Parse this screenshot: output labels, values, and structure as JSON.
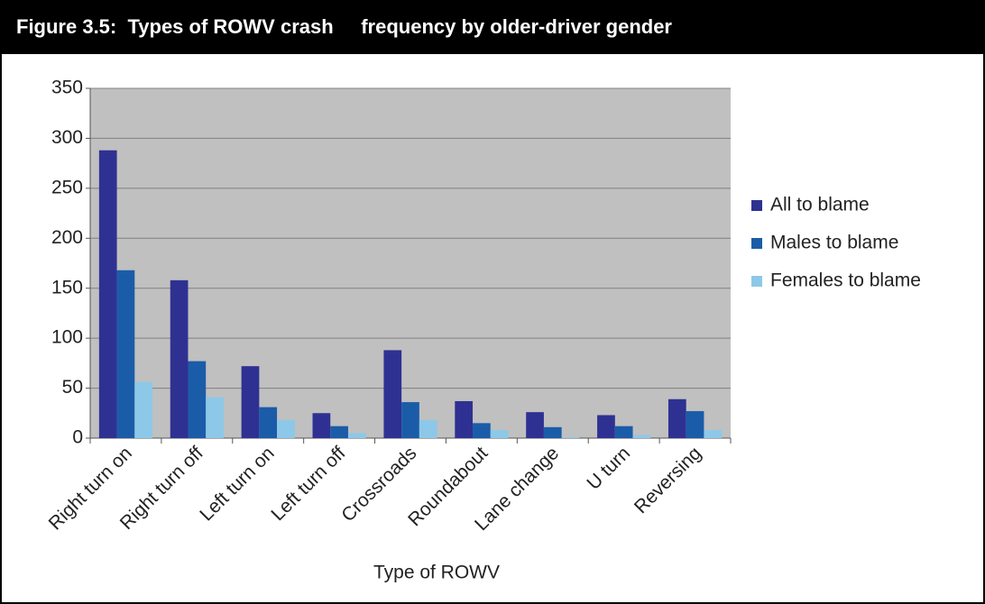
{
  "chart_data": {
    "type": "bar",
    "title": "Figure 3.5:  Types of ROWV crash     frequency by older-driver gender",
    "x_label": "Type of ROWV",
    "categories": [
      "Right turn on",
      "Right turn off",
      "Left turn on",
      "Left turn off",
      "Crossroads",
      "Roundabout",
      "Lane change",
      "U turn",
      "Reversing"
    ],
    "series": [
      {
        "name": "All to blame",
        "color": "#2e3192",
        "values": [
          288,
          158,
          72,
          25,
          88,
          37,
          26,
          23,
          39
        ]
      },
      {
        "name": "Males to blame",
        "color": "#1b5ca8",
        "values": [
          168,
          77,
          31,
          12,
          36,
          15,
          11,
          12,
          27
        ]
      },
      {
        "name": "Females to blame",
        "color": "#8dc8e8",
        "values": [
          56,
          41,
          18,
          5,
          18,
          8,
          1,
          3,
          8
        ]
      }
    ],
    "ylim": [
      0,
      350
    ],
    "yticks": [
      0,
      50,
      100,
      150,
      200,
      250,
      300,
      350
    ],
    "grid": true,
    "legend": "right"
  }
}
